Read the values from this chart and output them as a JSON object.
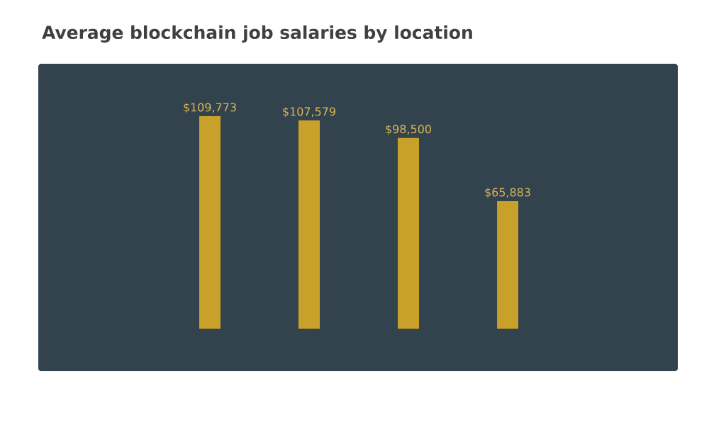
{
  "chart_data": {
    "type": "bar",
    "title": "Average blockchain job salaries by location",
    "categories": [
      null,
      null,
      null,
      null
    ],
    "values": [
      109773,
      107579,
      98500,
      65883
    ],
    "value_labels": [
      "$109,773",
      "$107,579",
      "$98,500",
      "$65,883"
    ],
    "color": "#c9a02a"
  }
}
